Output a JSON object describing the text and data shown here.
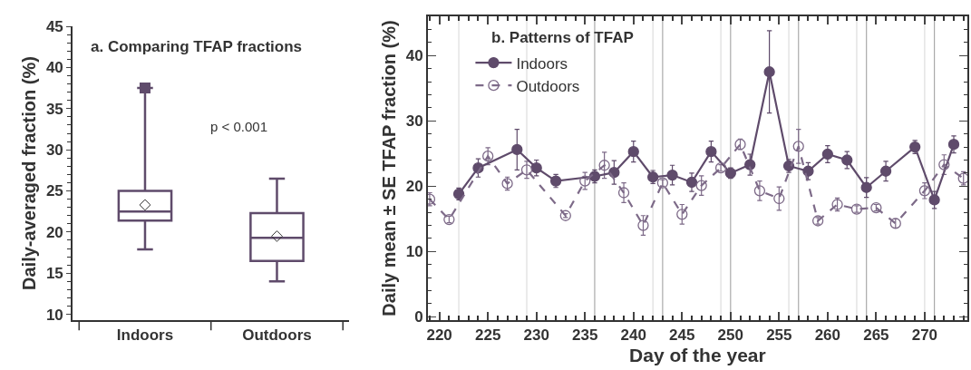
{
  "chart_data": [
    {
      "type": "box",
      "title": "a. Comparing TFAP fractions",
      "ylabel": "Daily-averaged fraction (%)",
      "categories": [
        "Indoors",
        "Outdoors"
      ],
      "color": "#5f4b6b",
      "boxes": [
        {
          "low": 17.9,
          "q1": 21.4,
          "median": 22.5,
          "q3": 25.0,
          "high": 37.5,
          "mean": 23.3,
          "outliers": [
            37.5
          ]
        },
        {
          "low": 14.0,
          "q1": 16.5,
          "median": 19.3,
          "q3": 22.3,
          "high": 26.5,
          "mean": 19.5
        }
      ],
      "ylim": [
        9.3,
        45
      ],
      "yticks": [
        10,
        15,
        20,
        25,
        30,
        35,
        40,
        45
      ],
      "annotations": [
        "p < 0.001"
      ],
      "grid": false
    },
    {
      "type": "line",
      "title": "b. Patterns of TFAP",
      "xlabel": "Day of the year",
      "ylabel": "Daily mean ± SE TFAP fraction (%)",
      "marker": "circle",
      "legend": "top left",
      "grid": false,
      "xlim": [
        218.8,
        274.4
      ],
      "xticks": [
        220,
        225,
        230,
        235,
        240,
        245,
        250,
        255,
        260,
        265,
        270
      ],
      "ylim": [
        -0.5,
        46
      ],
      "yticks": [
        0,
        10,
        20,
        30,
        40
      ],
      "series": [
        {
          "name": "Indoors",
          "color": "#5f4b6b",
          "line_style": "solid",
          "x": [
            222,
            224,
            228,
            230,
            232,
            236,
            238,
            240,
            242,
            244,
            246,
            248,
            250,
            252,
            254,
            256,
            258,
            260,
            262,
            264,
            266,
            269,
            271,
            273
          ],
          "values": [
            18.8,
            22.8,
            25.6,
            22.8,
            20.8,
            21.5,
            22.1,
            25.3,
            21.4,
            21.7,
            20.6,
            25.3,
            22.0,
            23.3,
            37.5,
            23.1,
            22.3,
            24.9,
            24.0,
            19.8,
            22.3,
            26.0,
            17.9,
            26.4
          ],
          "errors": [
            0.9,
            1.4,
            3.1,
            1.2,
            1.0,
            1.0,
            1.8,
            1.6,
            1.0,
            1.5,
            1.4,
            1.6,
            0.8,
            1.6,
            6.3,
            1.0,
            1.3,
            1.3,
            1.3,
            1.5,
            1.5,
            1.0,
            1.3,
            1.3
          ]
        },
        {
          "name": "Outdoors",
          "color": "#7d6a88",
          "line_style": "dashed",
          "x": [
            219,
            221,
            225,
            227,
            229,
            233,
            235,
            237,
            239,
            241,
            243,
            245,
            247,
            249,
            251,
            253,
            255,
            257,
            259,
            261,
            263,
            265,
            267,
            270,
            272,
            274
          ],
          "values": [
            18.0,
            14.9,
            24.6,
            20.4,
            22.5,
            15.5,
            20.8,
            23.2,
            19.0,
            14.0,
            20.5,
            15.7,
            20.1,
            22.8,
            26.4,
            19.3,
            18.1,
            26.1,
            14.7,
            17.2,
            16.5,
            16.7,
            14.3,
            19.3,
            23.3,
            21.2
          ],
          "errors": [
            1.0,
            0.5,
            1.3,
            1.0,
            1.3,
            0.3,
            1.3,
            2.0,
            1.5,
            1.5,
            0.5,
            1.5,
            1.5,
            0.5,
            0.8,
            1.5,
            1.8,
            2.6,
            0.5,
            1.0,
            0.5,
            0.5,
            0.7,
            1.2,
            1.5,
            1.0
          ]
        }
      ],
      "ref_lines": [
        {
          "axis": "x",
          "value": 222,
          "color": "#dddddd"
        },
        {
          "axis": "x",
          "value": 229,
          "color": "#dddddd"
        },
        {
          "axis": "x",
          "value": 236,
          "color": "#aaaaaa"
        },
        {
          "axis": "x",
          "value": 242,
          "color": "#dddddd"
        },
        {
          "axis": "x",
          "value": 243,
          "color": "#aaaaaa"
        },
        {
          "axis": "x",
          "value": 249,
          "color": "#dddddd"
        },
        {
          "axis": "x",
          "value": 250,
          "color": "#aaaaaa"
        },
        {
          "axis": "x",
          "value": 256,
          "color": "#dddddd"
        },
        {
          "axis": "x",
          "value": 257,
          "color": "#aaaaaa"
        },
        {
          "axis": "x",
          "value": 263,
          "color": "#dddddd"
        },
        {
          "axis": "x",
          "value": 264,
          "color": "#aaaaaa"
        },
        {
          "axis": "x",
          "value": 270,
          "color": "#dddddd"
        },
        {
          "axis": "x",
          "value": 271,
          "color": "#aaaaaa"
        }
      ]
    }
  ]
}
